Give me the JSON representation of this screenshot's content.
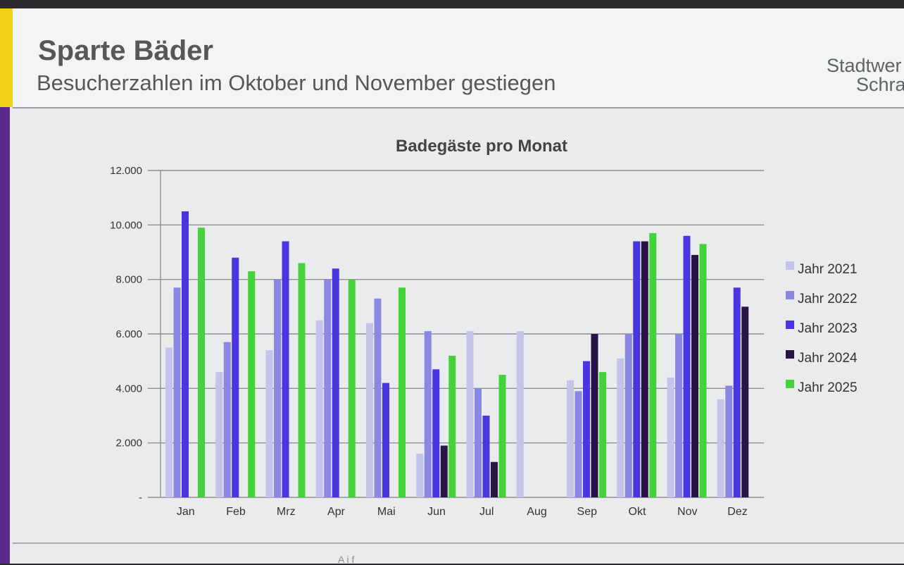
{
  "slide": {
    "title": "Sparte Bäder",
    "subtitle": "Besucherzahlen im Oktober und November gestiegen",
    "logo_line1": "Stadtwer",
    "logo_line2": "Schra",
    "footer_fragment": "A      i     f"
  },
  "colors": {
    "Jahr 2021": "#c3c3ec",
    "Jahr 2022": "#8a88e2",
    "Jahr 2023": "#4a36e0",
    "Jahr 2024": "#2a1446",
    "Jahr 2025": "#43d23a"
  },
  "chart_data": {
    "type": "bar",
    "title": "Badegäste pro Monat",
    "xlabel": "",
    "ylabel": "",
    "ylim": [
      0,
      12000
    ],
    "yticks": [
      {
        "value": 0,
        "label": "-"
      },
      {
        "value": 2000,
        "label": "2.000"
      },
      {
        "value": 4000,
        "label": "4.000"
      },
      {
        "value": 6000,
        "label": "6.000"
      },
      {
        "value": 8000,
        "label": "8.000"
      },
      {
        "value": 10000,
        "label": "10.000"
      },
      {
        "value": 12000,
        "label": "12.000"
      }
    ],
    "grid": true,
    "legend_position": "right",
    "categories": [
      "Jan",
      "Feb",
      "Mrz",
      "Apr",
      "Mai",
      "Jun",
      "Jul",
      "Aug",
      "Sep",
      "Okt",
      "Nov",
      "Dez"
    ],
    "series": [
      {
        "name": "Jahr 2021",
        "values": [
          5500,
          4600,
          5400,
          6500,
          6400,
          1600,
          6100,
          6100,
          4300,
          5100,
          4400,
          3600
        ]
      },
      {
        "name": "Jahr 2022",
        "values": [
          7700,
          5700,
          8000,
          8000,
          7300,
          6100,
          4000,
          null,
          3900,
          6000,
          6000,
          4100
        ]
      },
      {
        "name": "Jahr 2023",
        "values": [
          10500,
          8800,
          9400,
          8400,
          4200,
          4700,
          3000,
          null,
          5000,
          9400,
          9600,
          7700
        ]
      },
      {
        "name": "Jahr 2024",
        "values": [
          null,
          null,
          null,
          null,
          null,
          1900,
          1300,
          null,
          6000,
          9400,
          8900,
          7000
        ]
      },
      {
        "name": "Jahr 2025",
        "values": [
          9900,
          8300,
          8600,
          8000,
          7700,
          5200,
          4500,
          null,
          4600,
          9700,
          9300,
          null
        ]
      }
    ]
  }
}
